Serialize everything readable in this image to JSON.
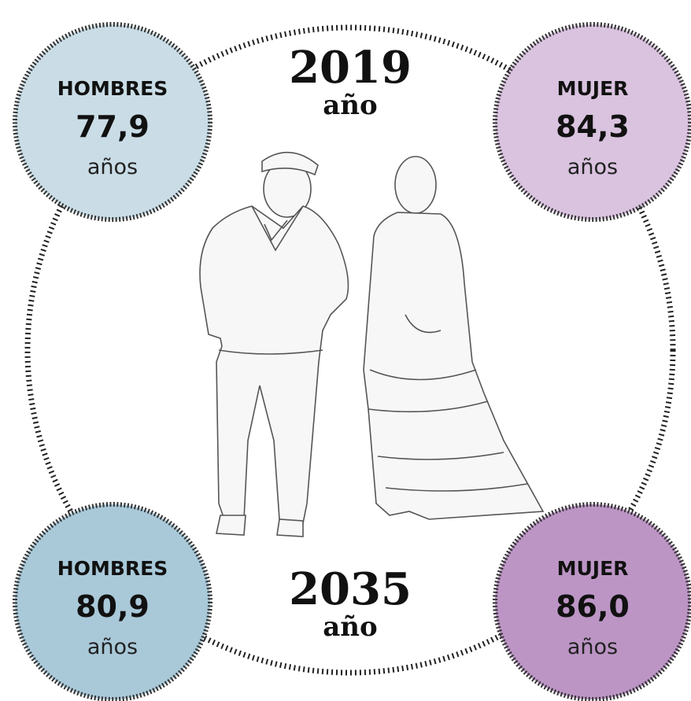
{
  "years": [
    {
      "year": "2019",
      "unit": "año"
    },
    {
      "year": "2035",
      "unit": "año"
    }
  ],
  "circles": [
    {
      "label": "HOMBRES",
      "value": "77,9",
      "unit": "años"
    },
    {
      "label": "MUJER",
      "value": "84,3",
      "unit": "años"
    },
    {
      "label": "HOMBRES",
      "value": "80,9",
      "unit": "años"
    },
    {
      "label": "MUJER",
      "value": "86,0",
      "unit": "años"
    }
  ]
}
